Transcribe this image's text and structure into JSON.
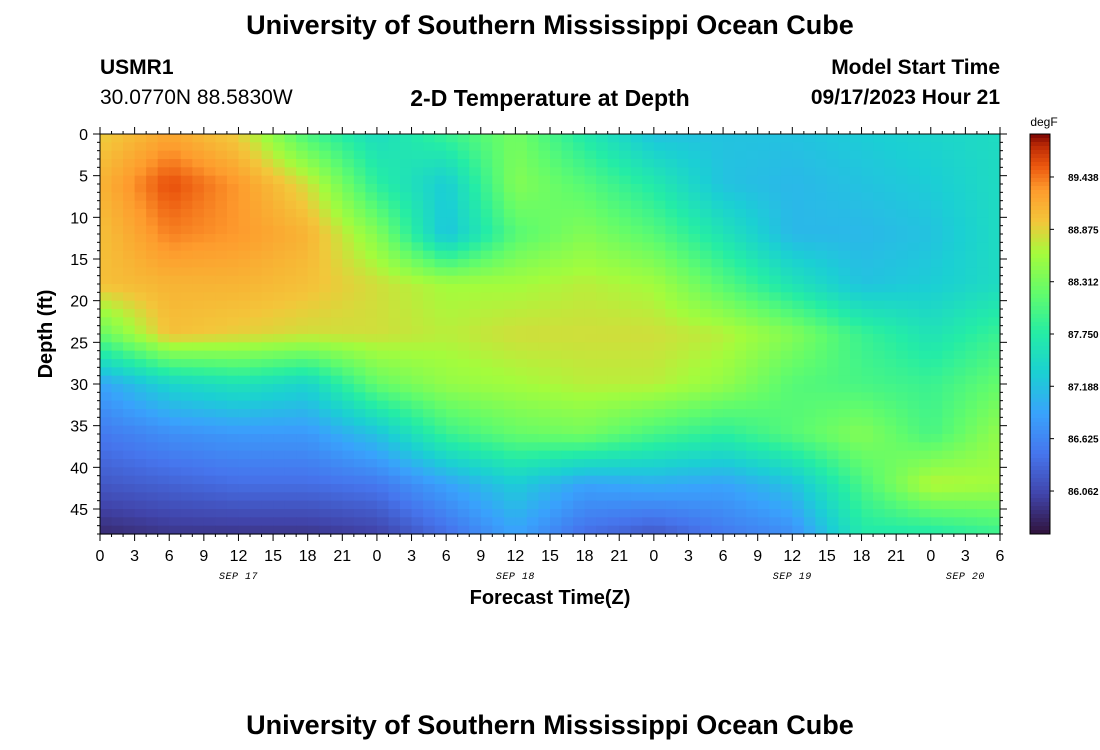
{
  "page": {
    "title_top": "University of Southern Mississippi Ocean Cube",
    "title_bottom": "University of Southern Mississippi Ocean Cube"
  },
  "header": {
    "station": "USMR1",
    "coords": "30.0770N  88.5830W",
    "plot_title": "2-D Temperature at Depth",
    "model_start_label": "Model Start Time",
    "model_start_value": "09/17/2023 Hour 21"
  },
  "chart_data": {
    "type": "heatmap",
    "title": "2-D Temperature at Depth",
    "xlabel": "Forecast Time(Z)",
    "ylabel": "Depth (ft)",
    "x_tick_labels": [
      "0",
      "3",
      "6",
      "9",
      "12",
      "15",
      "18",
      "21",
      "0",
      "3",
      "6",
      "9",
      "12",
      "15",
      "18",
      "21",
      "0",
      "3",
      "6",
      "9",
      "12",
      "15",
      "18",
      "21",
      "0",
      "3",
      "6"
    ],
    "date_labels": [
      {
        "label": "SEP 17",
        "hour": 12
      },
      {
        "label": "SEP 18",
        "hour": 36
      },
      {
        "label": "SEP 19",
        "hour": 60
      },
      {
        "label": "SEP 20",
        "hour": 75
      }
    ],
    "xlim_hours": [
      0,
      78
    ],
    "y_ticks": [
      0,
      5,
      10,
      15,
      20,
      25,
      30,
      35,
      40,
      45
    ],
    "ylim": [
      0,
      48
    ],
    "colorbar": {
      "unit": "degF",
      "min": 85.6,
      "max": 89.9,
      "tick_labels": [
        "89.438",
        "88.875",
        "88.312",
        "87.750",
        "87.188",
        "86.625",
        "86.062"
      ],
      "tick_values": [
        89.438,
        88.875,
        88.312,
        87.75,
        87.188,
        86.625,
        86.062
      ]
    },
    "grid_x_hours": [
      0,
      6,
      12,
      18,
      24,
      30,
      36,
      42,
      48,
      54,
      60,
      66,
      72,
      78
    ],
    "grid_depth_ft": [
      0,
      6,
      12,
      18,
      24,
      30,
      36,
      42,
      48
    ],
    "values_degF": [
      [
        88.9,
        89.2,
        88.9,
        88.0,
        87.5,
        87.9,
        88.3,
        87.7,
        87.2,
        87.2,
        87.2,
        87.3,
        87.4,
        87.5
      ],
      [
        89.1,
        89.6,
        89.3,
        88.8,
        87.8,
        87.3,
        88.4,
        88.1,
        87.7,
        87.2,
        87.1,
        87.2,
        87.3,
        87.5
      ],
      [
        89.0,
        89.4,
        89.3,
        89.1,
        88.4,
        87.2,
        88.1,
        88.4,
        88.1,
        87.6,
        87.1,
        87.1,
        87.2,
        87.5
      ],
      [
        89.0,
        89.1,
        89.1,
        89.0,
        88.8,
        88.6,
        88.6,
        88.7,
        88.6,
        88.1,
        87.6,
        87.2,
        87.3,
        87.5
      ],
      [
        88.2,
        89.0,
        88.9,
        88.8,
        88.8,
        88.7,
        88.8,
        88.8,
        88.8,
        88.7,
        88.4,
        87.9,
        87.6,
        87.9
      ],
      [
        86.9,
        87.4,
        87.6,
        87.4,
        88.2,
        88.5,
        88.6,
        88.7,
        88.7,
        88.5,
        88.1,
        88.0,
        87.9,
        88.2
      ],
      [
        86.5,
        86.7,
        86.8,
        86.8,
        87.2,
        87.9,
        88.2,
        88.3,
        88.0,
        87.8,
        88.1,
        88.4,
        88.0,
        88.5
      ],
      [
        86.2,
        86.3,
        86.4,
        86.4,
        86.5,
        86.9,
        87.3,
        86.9,
        87.0,
        86.9,
        87.2,
        88.0,
        88.7,
        88.6
      ],
      [
        85.8,
        85.9,
        85.9,
        85.9,
        86.0,
        86.4,
        86.9,
        86.4,
        86.2,
        86.5,
        86.7,
        87.7,
        87.7,
        87.9
      ]
    ]
  }
}
